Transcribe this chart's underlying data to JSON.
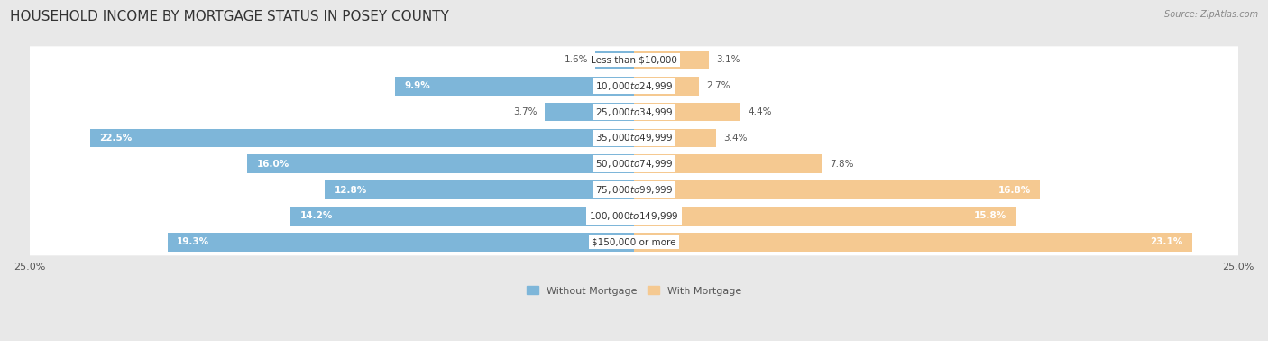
{
  "title": "HOUSEHOLD INCOME BY MORTGAGE STATUS IN POSEY COUNTY",
  "source": "Source: ZipAtlas.com",
  "categories": [
    "Less than $10,000",
    "$10,000 to $24,999",
    "$25,000 to $34,999",
    "$35,000 to $49,999",
    "$50,000 to $74,999",
    "$75,000 to $99,999",
    "$100,000 to $149,999",
    "$150,000 or more"
  ],
  "without_mortgage": [
    1.6,
    9.9,
    3.7,
    22.5,
    16.0,
    12.8,
    14.2,
    19.3
  ],
  "with_mortgage": [
    3.1,
    2.7,
    4.4,
    3.4,
    7.8,
    16.8,
    15.8,
    23.1
  ],
  "color_without": "#7EB6D9",
  "color_with": "#F5C991",
  "axis_limit": 25.0,
  "legend_labels": [
    "Without Mortgage",
    "With Mortgage"
  ],
  "background_color": "#e8e8e8",
  "title_fontsize": 11,
  "label_fontsize": 7.5,
  "axis_label_fontsize": 8
}
